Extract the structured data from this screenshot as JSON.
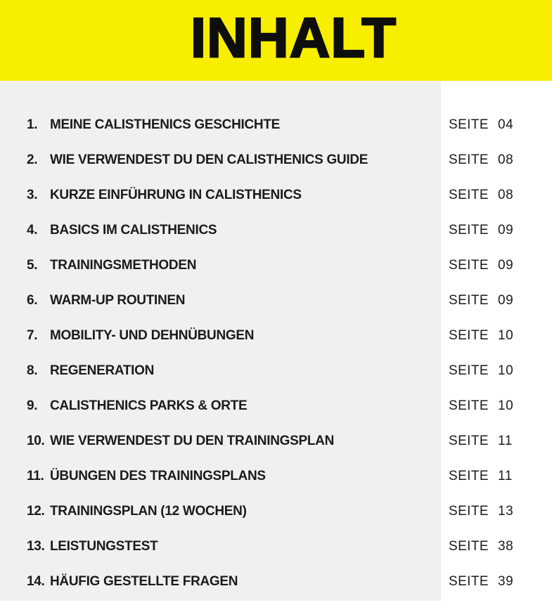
{
  "page": {
    "title": "INHALT"
  },
  "toc": {
    "page_label": "SEITE",
    "items": [
      {
        "num": "1.",
        "title": "MEINE CALISTHENICS GESCHICHTE",
        "page": "04"
      },
      {
        "num": "2.",
        "title": "WIE VERWENDEST DU DEN CALISTHENICS GUIDE",
        "page": "08"
      },
      {
        "num": "3.",
        "title": "KURZE EINFÜHRUNG IN CALISTHENICS",
        "page": "08"
      },
      {
        "num": "4.",
        "title": "BASICS IM CALISTHENICS",
        "page": "09"
      },
      {
        "num": "5.",
        "title": "TRAININGSMETHODEN",
        "page": "09"
      },
      {
        "num": "6.",
        "title": "WARM-UP ROUTINEN",
        "page": "09"
      },
      {
        "num": "7.",
        "title": "MOBILITY- UND DEHNÜBUNGEN",
        "page": "10"
      },
      {
        "num": "8.",
        "title": "REGENERATION",
        "page": "10"
      },
      {
        "num": "9.",
        "title": "CALISTHENICS PARKS & ORTE",
        "page": "10"
      },
      {
        "num": "10.",
        "title": "WIE VERWENDEST DU DEN TRAININGSPLAN",
        "page": "11"
      },
      {
        "num": "11.",
        "title": "ÜBUNGEN DES TRAININGSPLANS",
        "page": "11"
      },
      {
        "num": "12.",
        "title": "TRAININGSPLAN (12 WOCHEN)",
        "page": "13"
      },
      {
        "num": "13.",
        "title": "LEISTUNGSTEST",
        "page": "38"
      },
      {
        "num": "14.",
        "title": "HÄUFIG GESTELLTE FRAGEN",
        "page": "39"
      }
    ]
  },
  "colors": {
    "accent_yellow": "#F8EE00",
    "panel_gray": "#F0F0EF",
    "text_ink": "#1B1B1B"
  }
}
